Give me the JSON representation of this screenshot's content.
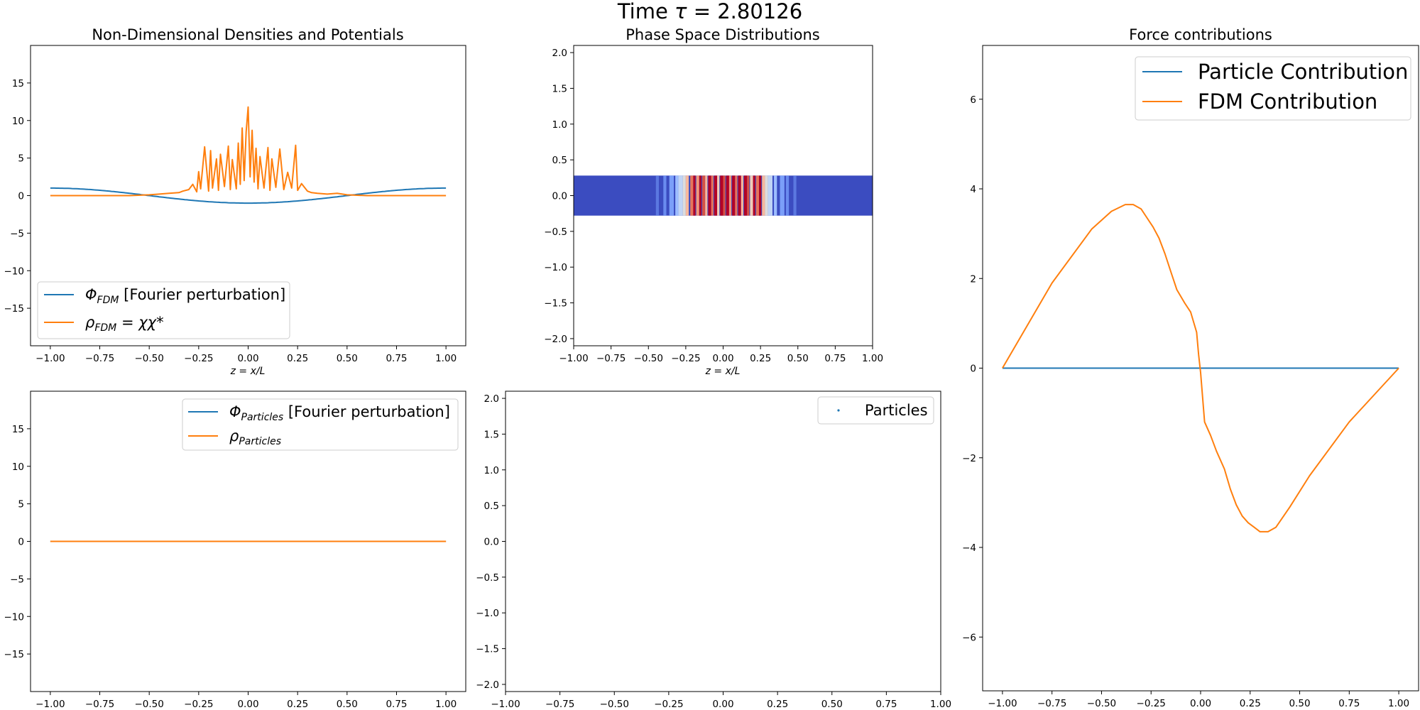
{
  "figure": {
    "suptitle_prefix": "Time ",
    "suptitle_symbol": "τ",
    "suptitle_value": " = 2.80126"
  },
  "colors": {
    "series1": "#1f77b4",
    "series2": "#ff7f0e",
    "phase_background": "#3b4cc0",
    "phase_dense": "#b40426"
  },
  "icons": {
    "legend_line": "line-swatch-icon",
    "legend_marker": "point-marker-icon"
  },
  "chart_data": [
    {
      "id": "densities",
      "type": "line",
      "title": "Non-Dimensional Densities and Potentials",
      "xlabel_main": "z",
      "xlabel_rest": " = x/L",
      "xlim": [
        -1.1,
        1.1
      ],
      "ylim": [
        -20,
        20
      ],
      "xticks": [
        -1.0,
        -0.75,
        -0.5,
        -0.25,
        0.0,
        0.25,
        0.5,
        0.75,
        1.0
      ],
      "xtick_labels": [
        "−1.00",
        "−0.75",
        "−0.50",
        "−0.25",
        "0.00",
        "0.25",
        "0.50",
        "0.75",
        "1.00"
      ],
      "yticks": [
        -15,
        -10,
        -5,
        0,
        5,
        10,
        15
      ],
      "ytick_labels": [
        "−15",
        "−10",
        "−5",
        "0",
        "5",
        "10",
        "15"
      ],
      "legend": "lower-left",
      "series": [
        {
          "name_main": "Φ",
          "name_sub": "FDM",
          "name_rest": " [Fourier perturbation]",
          "color": "#1f77b4",
          "kind": "cosine",
          "amplitude": 1.0,
          "x_range": [
            -1.0,
            1.0
          ]
        },
        {
          "name_main": "ρ",
          "name_sub": "FDM",
          "name_rest": " = χχ*",
          "color": "#ff7f0e",
          "kind": "spiky",
          "x": [
            -1.0,
            -0.6,
            -0.5,
            -0.45,
            -0.4,
            -0.35,
            -0.33,
            -0.3,
            -0.28,
            -0.26,
            -0.25,
            -0.24,
            -0.22,
            -0.2,
            -0.19,
            -0.18,
            -0.16,
            -0.15,
            -0.14,
            -0.12,
            -0.1,
            -0.09,
            -0.08,
            -0.06,
            -0.05,
            -0.04,
            -0.03,
            -0.02,
            -0.01,
            0.0,
            0.01,
            0.02,
            0.03,
            0.04,
            0.05,
            0.06,
            0.08,
            0.1,
            0.11,
            0.12,
            0.14,
            0.16,
            0.18,
            0.2,
            0.22,
            0.24,
            0.25,
            0.27,
            0.3,
            0.32,
            0.35,
            0.4,
            0.45,
            0.5,
            0.6,
            1.0
          ],
          "y": [
            0.0,
            0.0,
            0.1,
            0.2,
            0.3,
            0.4,
            0.6,
            0.8,
            1.5,
            0.5,
            3.2,
            0.9,
            6.5,
            0.6,
            6.0,
            1.0,
            4.9,
            0.7,
            5.5,
            1.2,
            6.6,
            0.8,
            4.8,
            0.9,
            7.0,
            1.5,
            9.0,
            2.0,
            8.5,
            11.8,
            2.5,
            8.7,
            1.8,
            6.3,
            0.9,
            5.2,
            1.0,
            6.4,
            0.7,
            4.9,
            1.1,
            6.2,
            0.8,
            3.1,
            1.0,
            6.7,
            0.7,
            1.6,
            0.6,
            0.4,
            0.3,
            0.2,
            0.3,
            0.1,
            0.0,
            0.0
          ]
        }
      ]
    },
    {
      "id": "phase-fdm",
      "type": "heatmap",
      "title": "Phase Space Distributions",
      "xlabel_main": "z",
      "xlabel_rest": " = x/L",
      "xlim": [
        -1.0,
        1.0
      ],
      "ylim": [
        -2.1,
        2.1
      ],
      "band_y": [
        -0.28,
        0.28
      ],
      "xticks": [
        -1.0,
        -0.75,
        -0.5,
        -0.25,
        0.0,
        0.25,
        0.5,
        0.75,
        1.0
      ],
      "xtick_labels": [
        "−1.00",
        "−0.75",
        "−0.50",
        "−0.25",
        "0.00",
        "0.25",
        "0.50",
        "0.75",
        "1.00"
      ],
      "yticks": [
        -2.0,
        -1.5,
        -1.0,
        -0.5,
        0.0,
        0.5,
        1.0,
        1.5,
        2.0
      ],
      "ytick_labels": [
        "−2.0",
        "−1.5",
        "−1.0",
        "−0.5",
        "0.0",
        "0.5",
        "1.0",
        "1.5",
        "2.0"
      ],
      "stripes": [
        {
          "x": -0.45,
          "w": 0.02,
          "c": "#5b78e0"
        },
        {
          "x": -0.4,
          "w": 0.02,
          "c": "#6a8bef"
        },
        {
          "x": -0.36,
          "w": 0.03,
          "c": "#7b9ff9"
        },
        {
          "x": -0.32,
          "w": 0.02,
          "c": "#9dbdff"
        },
        {
          "x": -0.3,
          "w": 0.03,
          "c": "#c0d4f5"
        },
        {
          "x": -0.27,
          "w": 0.02,
          "c": "#dddcdc"
        },
        {
          "x": -0.25,
          "w": 0.02,
          "c": "#f7b89c"
        },
        {
          "x": -0.22,
          "w": 0.02,
          "c": "#e7745b"
        },
        {
          "x": -0.2,
          "w": 0.015,
          "c": "#b40426"
        },
        {
          "x": -0.18,
          "w": 0.02,
          "c": "#f4987a"
        },
        {
          "x": -0.16,
          "w": 0.015,
          "c": "#b40426"
        },
        {
          "x": -0.14,
          "w": 0.02,
          "c": "#d65244"
        },
        {
          "x": -0.12,
          "w": 0.015,
          "c": "#f7b89c"
        },
        {
          "x": -0.1,
          "w": 0.02,
          "c": "#b40426"
        },
        {
          "x": -0.08,
          "w": 0.015,
          "c": "#e7745b"
        },
        {
          "x": -0.06,
          "w": 0.02,
          "c": "#b40426"
        },
        {
          "x": -0.04,
          "w": 0.015,
          "c": "#f2cbb7"
        },
        {
          "x": -0.02,
          "w": 0.02,
          "c": "#b40426"
        },
        {
          "x": 0.0,
          "w": 0.015,
          "c": "#d65244"
        },
        {
          "x": 0.02,
          "w": 0.02,
          "c": "#b40426"
        },
        {
          "x": 0.04,
          "w": 0.015,
          "c": "#f4987a"
        },
        {
          "x": 0.06,
          "w": 0.02,
          "c": "#b40426"
        },
        {
          "x": 0.08,
          "w": 0.015,
          "c": "#e7745b"
        },
        {
          "x": 0.1,
          "w": 0.02,
          "c": "#b40426"
        },
        {
          "x": 0.12,
          "w": 0.015,
          "c": "#f7b89c"
        },
        {
          "x": 0.14,
          "w": 0.02,
          "c": "#b40426"
        },
        {
          "x": 0.16,
          "w": 0.015,
          "c": "#d65244"
        },
        {
          "x": 0.18,
          "w": 0.02,
          "c": "#f2cbb7"
        },
        {
          "x": 0.2,
          "w": 0.015,
          "c": "#b40426"
        },
        {
          "x": 0.22,
          "w": 0.02,
          "c": "#e7745b"
        },
        {
          "x": 0.24,
          "w": 0.015,
          "c": "#b40426"
        },
        {
          "x": 0.26,
          "w": 0.02,
          "c": "#f7b89c"
        },
        {
          "x": 0.28,
          "w": 0.02,
          "c": "#dddcdc"
        },
        {
          "x": 0.3,
          "w": 0.03,
          "c": "#c0d4f5"
        },
        {
          "x": 0.34,
          "w": 0.02,
          "c": "#9dbdff"
        },
        {
          "x": 0.38,
          "w": 0.03,
          "c": "#7b9ff9"
        },
        {
          "x": 0.42,
          "w": 0.02,
          "c": "#6a8bef"
        },
        {
          "x": 0.47,
          "w": 0.02,
          "c": "#5b78e0"
        }
      ]
    },
    {
      "id": "forces",
      "type": "line",
      "title": "Force contributions",
      "xlim": [
        -1.1,
        1.1
      ],
      "ylim": [
        -7.2,
        7.2
      ],
      "xticks": [
        -1.0,
        -0.75,
        -0.5,
        -0.25,
        0.0,
        0.25,
        0.5,
        0.75,
        1.0
      ],
      "xtick_labels": [
        "−1.00",
        "−0.75",
        "−0.50",
        "−0.25",
        "0.00",
        "0.25",
        "0.50",
        "0.75",
        "1.00"
      ],
      "yticks": [
        -6,
        -4,
        -2,
        0,
        2,
        4,
        6
      ],
      "ytick_labels": [
        "−6",
        "−4",
        "−2",
        "0",
        "2",
        "4",
        "6"
      ],
      "legend": "upper-right",
      "series": [
        {
          "name": "Particle Contribution",
          "color": "#1f77b4",
          "x": [
            -1.0,
            1.0
          ],
          "y": [
            0.0,
            0.0
          ]
        },
        {
          "name": "FDM Contribution",
          "color": "#ff7f0e",
          "x": [
            -1.0,
            -0.75,
            -0.55,
            -0.45,
            -0.38,
            -0.34,
            -0.3,
            -0.27,
            -0.24,
            -0.21,
            -0.18,
            -0.15,
            -0.12,
            -0.08,
            -0.05,
            -0.02,
            -0.01,
            0.0,
            0.02,
            0.05,
            0.08,
            0.12,
            0.15,
            0.18,
            0.21,
            0.24,
            0.27,
            0.3,
            0.34,
            0.38,
            0.45,
            0.55,
            0.75,
            1.0
          ],
          "y": [
            0.0,
            1.9,
            3.1,
            3.5,
            3.65,
            3.65,
            3.55,
            3.35,
            3.15,
            2.9,
            2.55,
            2.15,
            1.75,
            1.45,
            1.25,
            0.8,
            0.3,
            -0.1,
            -1.2,
            -1.5,
            -1.85,
            -2.25,
            -2.7,
            -3.05,
            -3.3,
            -3.45,
            -3.55,
            -3.65,
            -3.65,
            -3.55,
            -3.1,
            -2.4,
            -1.2,
            0.0
          ]
        }
      ]
    },
    {
      "id": "particles-density",
      "type": "line",
      "xlim": [
        -1.1,
        1.1
      ],
      "ylim": [
        -20,
        20
      ],
      "xticks": [
        -1.0,
        -0.75,
        -0.5,
        -0.25,
        0.0,
        0.25,
        0.5,
        0.75,
        1.0
      ],
      "xtick_labels": [
        "−1.00",
        "−0.75",
        "−0.50",
        "−0.25",
        "0.00",
        "0.25",
        "0.50",
        "0.75",
        "1.00"
      ],
      "yticks": [
        -15,
        -10,
        -5,
        0,
        5,
        10,
        15
      ],
      "ytick_labels": [
        "−15",
        "−10",
        "−5",
        "0",
        "5",
        "10",
        "15"
      ],
      "legend": "upper-right",
      "series": [
        {
          "name_main": "Φ",
          "name_sub": "Particles",
          "name_rest": " [Fourier perturbation]",
          "color": "#1f77b4",
          "x": [
            -1.0,
            1.0
          ],
          "y": [
            0.0,
            0.0
          ]
        },
        {
          "name_main": "ρ",
          "name_sub": "Particles",
          "name_rest": "",
          "color": "#ff7f0e",
          "x": [
            -1.0,
            1.0
          ],
          "y": [
            0.0,
            0.0
          ]
        }
      ]
    },
    {
      "id": "particles-phase",
      "type": "scatter",
      "xlim": [
        -1.0,
        1.0
      ],
      "ylim": [
        -2.1,
        2.1
      ],
      "xticks": [
        -1.0,
        -0.75,
        -0.5,
        -0.25,
        0.0,
        0.25,
        0.5,
        0.75,
        1.0
      ],
      "xtick_labels": [
        "−1.00",
        "−0.75",
        "−0.50",
        "−0.25",
        "0.00",
        "0.25",
        "0.50",
        "0.75",
        "1.00"
      ],
      "yticks": [
        -2.0,
        -1.5,
        -1.0,
        -0.5,
        0.0,
        0.5,
        1.0,
        1.5,
        2.0
      ],
      "ytick_labels": [
        "−2.0",
        "−1.5",
        "−1.0",
        "−0.5",
        "0.0",
        "0.5",
        "1.0",
        "1.5",
        "2.0"
      ],
      "legend": "upper-right",
      "series": [
        {
          "name": "Particles",
          "color": "#1f77b4",
          "x": [],
          "y": []
        }
      ]
    }
  ]
}
